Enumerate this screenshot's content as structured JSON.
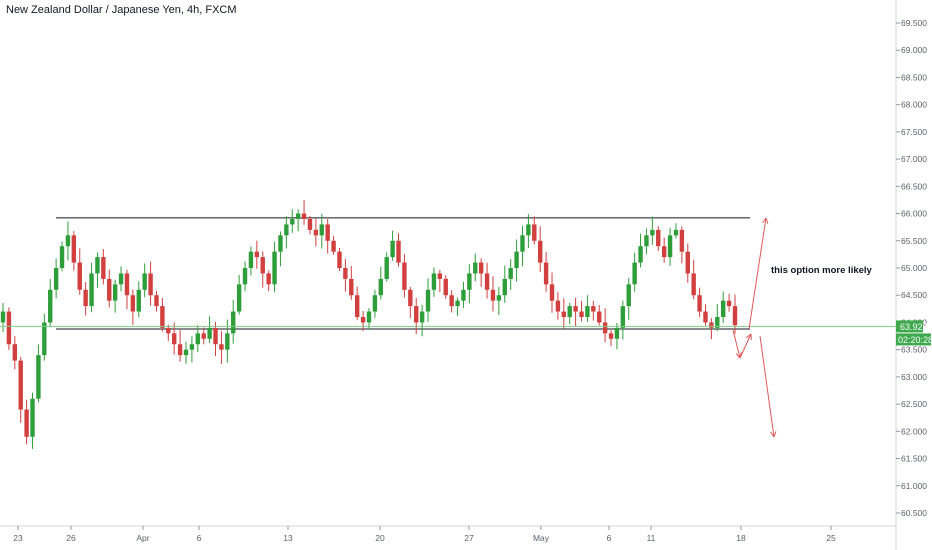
{
  "header": {
    "title": "New Zealand Dollar / Japanese Yen, 4h, FXCM"
  },
  "price_badges": {
    "last_price": "63.927",
    "countdown": "02:20:28"
  },
  "annotation": {
    "text": "this option more likely"
  },
  "colors": {
    "up": "#2e9e3a",
    "down": "#d23f3f",
    "price_line": "#7fce88",
    "range_line": "#131722",
    "arrow": "#e05a5a",
    "badge_bg": "#3ea94d"
  },
  "chart_data": {
    "type": "candlestick",
    "title": "New Zealand Dollar / Japanese Yen, 4h, FXCM",
    "ylim": [
      60.2,
      70.0
    ],
    "y_ticks": [
      "69.500",
      "69.000",
      "68.500",
      "68.000",
      "67.500",
      "67.000",
      "66.500",
      "66.000",
      "65.500",
      "65.000",
      "64.500",
      "64.000",
      "63.500",
      "63.000",
      "62.500",
      "62.000",
      "61.500",
      "61.000",
      "60.500"
    ],
    "x_ticks": [
      {
        "label": "23",
        "t": 1
      },
      {
        "label": "26",
        "t": 6
      },
      {
        "label": "Apr",
        "t": 11
      },
      {
        "label": "6",
        "t": 16
      },
      {
        "label": "13",
        "t": 21
      },
      {
        "label": "20",
        "t": 26
      },
      {
        "label": "27",
        "t": 31
      },
      {
        "label": "May",
        "t": 36
      },
      {
        "label": "6",
        "t": 41
      },
      {
        "label": "11",
        "t": 46
      },
      {
        "label": "18",
        "t": 51
      },
      {
        "label": "25",
        "t": 56
      }
    ],
    "range_resistance": 65.92,
    "range_support": 63.88,
    "last_price": 63.927,
    "candle_path_close": [
      64.2,
      63.6,
      63.3,
      62.4,
      61.9,
      62.6,
      63.4,
      64.0,
      64.6,
      65.0,
      65.4,
      65.6,
      65.1,
      64.6,
      64.3,
      64.9,
      65.2,
      64.8,
      64.4,
      64.7,
      64.9,
      64.5,
      64.2,
      64.6,
      64.9,
      64.5,
      64.3,
      63.9,
      63.8,
      63.6,
      63.4,
      63.5,
      63.6,
      63.8,
      63.7,
      63.9,
      63.6,
      63.5,
      63.8,
      64.2,
      64.7,
      65.0,
      65.3,
      65.2,
      64.9,
      64.7,
      65.3,
      65.6,
      65.8,
      65.9,
      66.0,
      65.9,
      65.7,
      65.6,
      65.8,
      65.5,
      65.3,
      65.0,
      64.8,
      64.5,
      64.1,
      64.0,
      64.2,
      64.5,
      64.8,
      65.2,
      65.5,
      65.1,
      64.6,
      64.3,
      64.0,
      64.2,
      64.6,
      64.9,
      64.8,
      64.5,
      64.3,
      64.4,
      64.6,
      64.9,
      65.1,
      64.9,
      64.6,
      64.4,
      64.5,
      64.8,
      65.0,
      65.3,
      65.6,
      65.8,
      65.5,
      65.1,
      64.7,
      64.4,
      64.2,
      64.1,
      64.3,
      64.2,
      64.1,
      64.3,
      64.2,
      64.0,
      63.8,
      63.7,
      63.9,
      64.3,
      64.7,
      65.1,
      65.4,
      65.6,
      65.7,
      65.4,
      65.2,
      65.6,
      65.7,
      65.3,
      64.9,
      64.5,
      64.2,
      64.0,
      63.9,
      64.1,
      64.4,
      64.3,
      63.95
    ]
  }
}
